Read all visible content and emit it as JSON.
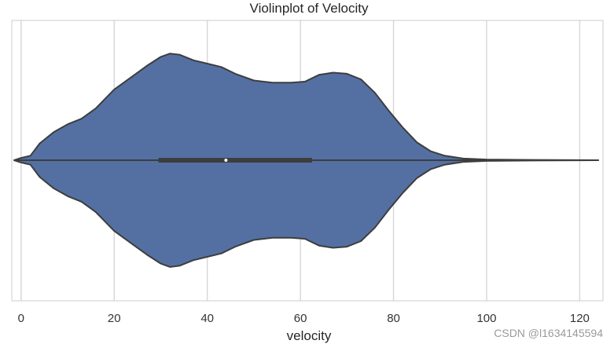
{
  "chart_data": {
    "type": "violin",
    "title": "Violinplot of Velocity",
    "xlabel": "velocity",
    "ylabel": "",
    "xlim": [
      -2,
      125
    ],
    "xticks": [
      0,
      20,
      40,
      60,
      80,
      100,
      120
    ],
    "grid": true,
    "color": "#5470a3",
    "outline_color": "#3d3d3d",
    "kde_range": [
      -1.5,
      124
    ],
    "density": [
      [
        -1.5,
        0.0
      ],
      [
        0,
        0.02
      ],
      [
        2,
        0.04
      ],
      [
        4,
        0.15
      ],
      [
        7,
        0.25
      ],
      [
        10,
        0.32
      ],
      [
        13,
        0.37
      ],
      [
        16,
        0.46
      ],
      [
        20,
        0.63
      ],
      [
        24,
        0.75
      ],
      [
        27,
        0.84
      ],
      [
        30,
        0.92
      ],
      [
        32,
        0.95
      ],
      [
        34,
        0.94
      ],
      [
        37,
        0.89
      ],
      [
        40,
        0.86
      ],
      [
        43,
        0.83
      ],
      [
        46,
        0.77
      ],
      [
        50,
        0.71
      ],
      [
        54,
        0.69
      ],
      [
        58,
        0.69
      ],
      [
        61,
        0.7
      ],
      [
        64,
        0.76
      ],
      [
        67,
        0.78
      ],
      [
        70,
        0.77
      ],
      [
        73,
        0.72
      ],
      [
        76,
        0.6
      ],
      [
        79,
        0.44
      ],
      [
        82,
        0.29
      ],
      [
        85,
        0.16
      ],
      [
        88,
        0.08
      ],
      [
        91,
        0.04
      ],
      [
        95,
        0.015
      ],
      [
        100,
        0.006
      ],
      [
        105,
        0.004
      ],
      [
        110,
        0.003
      ],
      [
        115,
        0.002
      ],
      [
        120,
        0.001
      ],
      [
        124,
        0.0
      ]
    ],
    "box": {
      "q1": 29.5,
      "median": 44,
      "q3": 62.5,
      "whisker_low": -1.5,
      "whisker_high": 124
    }
  },
  "watermark": "CSDN @l1634145594"
}
